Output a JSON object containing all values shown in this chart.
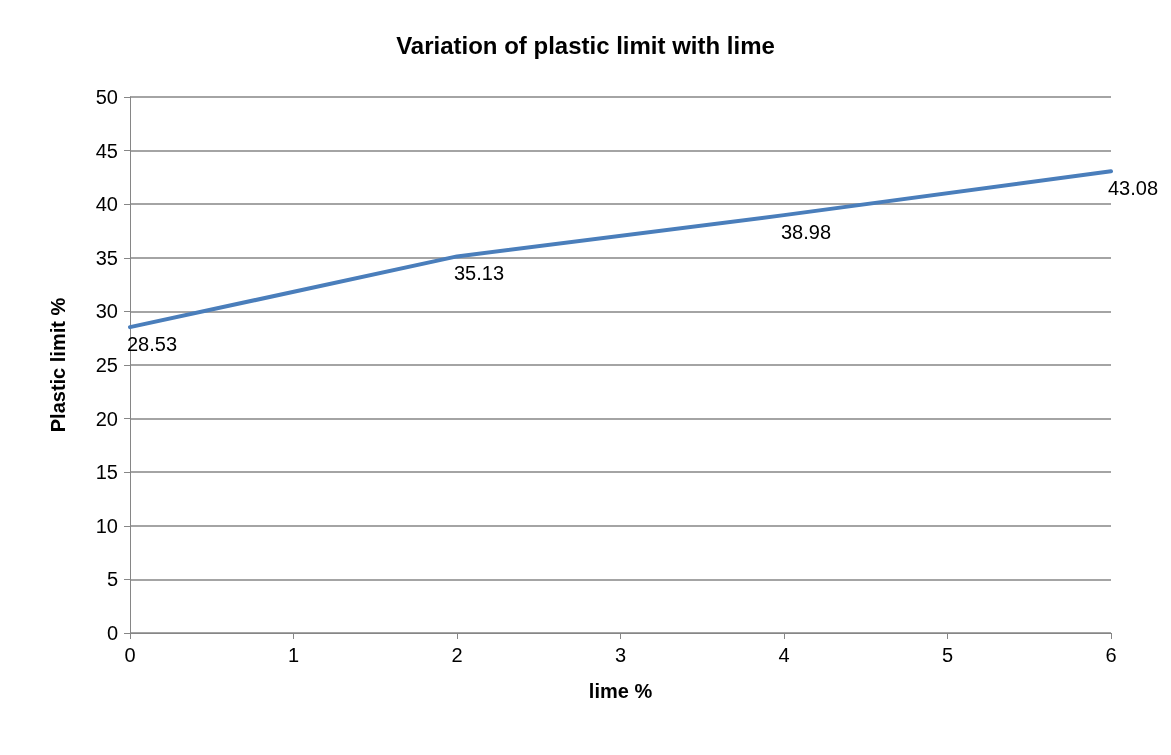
{
  "chart_data": {
    "type": "line",
    "title": "Variation of plastic limit with lime",
    "xlabel": "lime %",
    "ylabel": "Plastic limit %",
    "x": [
      0,
      2,
      4,
      6
    ],
    "series": [
      {
        "color": "#4a7ebb",
        "values": [
          28.53,
          35.13,
          38.98,
          43.08
        ]
      }
    ],
    "xlim": [
      0,
      6
    ],
    "xticks": [
      0,
      1,
      2,
      3,
      4,
      5,
      6
    ],
    "ylim": [
      0,
      50
    ],
    "yticks": [
      0,
      5,
      10,
      15,
      20,
      25,
      30,
      35,
      40,
      45,
      50
    ],
    "grid": "y",
    "marker": "none",
    "line_style": "solid",
    "data_labels": true
  }
}
